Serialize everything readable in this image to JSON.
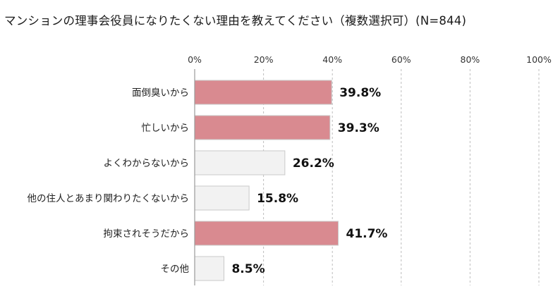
{
  "chart_data": {
    "type": "bar",
    "orientation": "horizontal",
    "title": "マンションの理事会役員になりたくない理由を教えてください（複数選択可）(N=844)",
    "categories": [
      "面倒臭いから",
      "忙しいから",
      "よくわからないから",
      "他の住人とあまり関わりたくないから",
      "拘束されそうだから",
      "その他"
    ],
    "values": [
      39.8,
      39.3,
      26.2,
      15.8,
      41.7,
      8.5
    ],
    "value_labels": [
      "39.8%",
      "39.3%",
      "26.2%",
      "15.8%",
      "41.7%",
      "8.5%"
    ],
    "highlight": [
      true,
      true,
      false,
      false,
      true,
      false
    ],
    "xlim": [
      0,
      100
    ],
    "xticks": [
      0,
      20,
      40,
      60,
      80,
      100
    ],
    "xtick_labels": [
      "0%",
      "20%",
      "40%",
      "60%",
      "80%",
      "100%"
    ],
    "grid": true,
    "colors": {
      "highlight_fill": "#d98a90",
      "normal_fill": "#f2f2f2",
      "bar_stroke": "#c9c9c9",
      "grid": "#bdbdbd"
    }
  }
}
